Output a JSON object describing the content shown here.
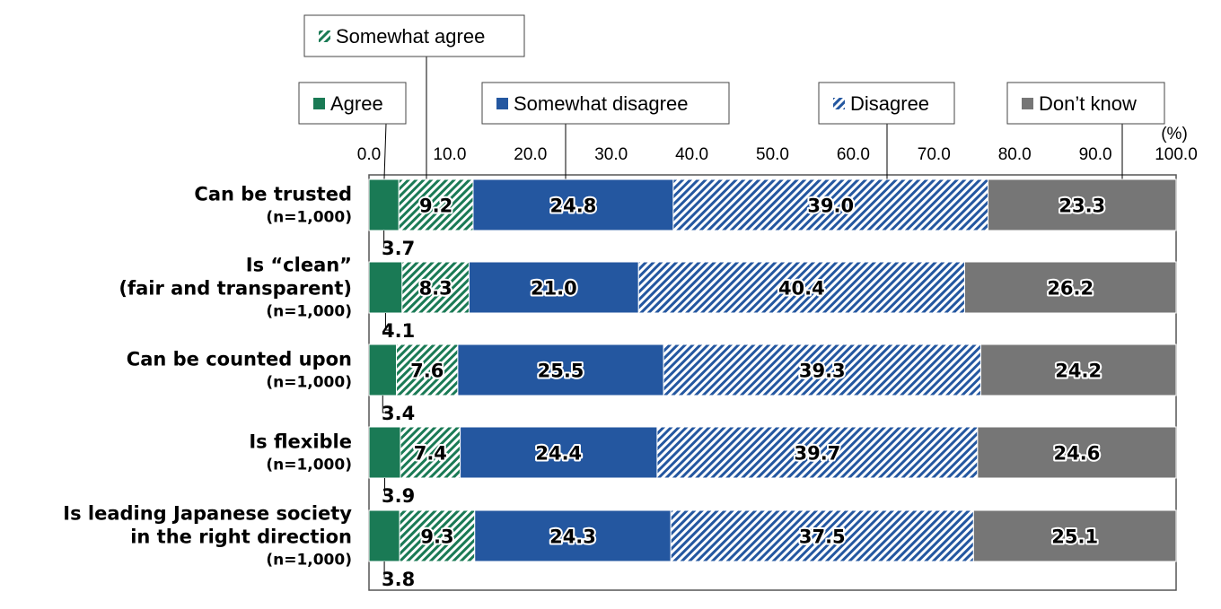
{
  "chart_data": {
    "type": "stacked-bar-horizontal",
    "unit_label": "(%)",
    "xlim": [
      0,
      100
    ],
    "ticks": [
      "0.0",
      "10.0",
      "20.0",
      "30.0",
      "40.0",
      "50.0",
      "60.0",
      "70.0",
      "80.0",
      "90.0",
      "100.0"
    ],
    "series": [
      {
        "name": "Agree",
        "color": "#1a7a55",
        "pattern": "solid"
      },
      {
        "name": "Somewhat agree",
        "color": "#1a7a55",
        "pattern": "hatch"
      },
      {
        "name": "Somewhat disagree",
        "color": "#2457a0",
        "pattern": "solid"
      },
      {
        "name": "Disagree",
        "color": "#2457a0",
        "pattern": "hatch"
      },
      {
        "name": "Don’t know",
        "color": "#767676",
        "pattern": "solid"
      }
    ],
    "categories": [
      {
        "label": [
          "Can be trusted"
        ],
        "n": "(n=1,000)",
        "values": [
          3.7,
          9.2,
          24.8,
          39.0,
          23.3
        ],
        "labels": [
          "3.7",
          "9.2",
          "24.8",
          "39.0",
          "23.3"
        ]
      },
      {
        "label": [
          "Is “clean”",
          "(fair and transparent)"
        ],
        "n": "(n=1,000)",
        "values": [
          4.1,
          8.3,
          21.0,
          40.4,
          26.2
        ],
        "labels": [
          "4.1",
          "8.3",
          "21.0",
          "40.4",
          "26.2"
        ]
      },
      {
        "label": [
          "Can be counted upon"
        ],
        "n": "(n=1,000)",
        "values": [
          3.4,
          7.6,
          25.5,
          39.3,
          24.2
        ],
        "labels": [
          "3.4",
          "7.6",
          "25.5",
          "39.3",
          "24.2"
        ]
      },
      {
        "label": [
          "Is flexible"
        ],
        "n": "(n=1,000)",
        "values": [
          3.9,
          7.4,
          24.4,
          39.7,
          24.6
        ],
        "labels": [
          "3.9",
          "7.4",
          "24.4",
          "39.7",
          "24.6"
        ]
      },
      {
        "label": [
          "Is leading Japanese society",
          "in the right direction"
        ],
        "n": "(n=1,000)",
        "values": [
          3.8,
          9.3,
          24.3,
          37.5,
          25.1
        ],
        "labels": [
          "3.8",
          "9.3",
          "24.3",
          "37.5",
          "25.1"
        ]
      }
    ]
  }
}
